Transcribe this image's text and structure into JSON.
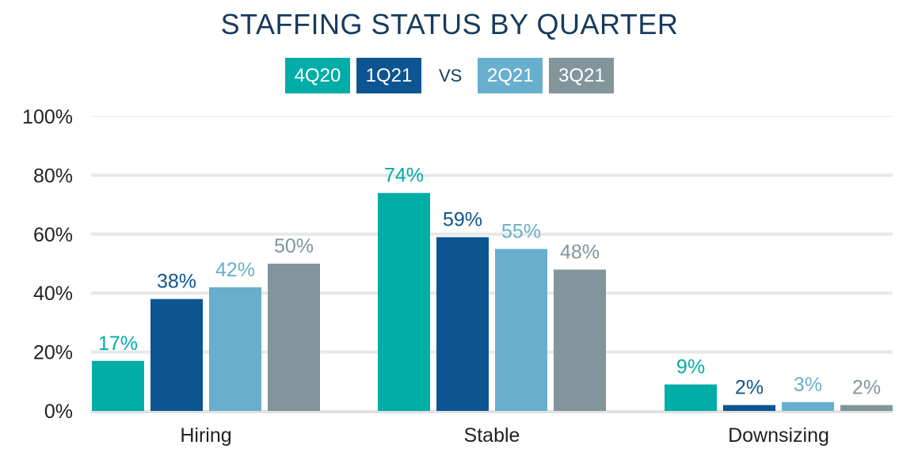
{
  "chart_data": {
    "type": "bar",
    "title": "STAFFING STATUS BY QUARTER",
    "legend_vs": "VS",
    "categories": [
      "Hiring",
      "Stable",
      "Downsizing"
    ],
    "series": [
      {
        "name": "4Q20",
        "color": "#00ada7",
        "values": [
          17,
          74,
          9
        ]
      },
      {
        "name": "1Q21",
        "color": "#0d5591",
        "values": [
          38,
          59,
          2
        ]
      },
      {
        "name": "2Q21",
        "color": "#67afcc",
        "values": [
          42,
          55,
          3
        ]
      },
      {
        "name": "3Q21",
        "color": "#82959c",
        "values": [
          50,
          48,
          2
        ]
      }
    ],
    "ylim": [
      0,
      100
    ],
    "yticks": [
      0,
      20,
      40,
      60,
      80,
      100
    ],
    "ytick_labels": [
      "0%",
      "20%",
      "40%",
      "60%",
      "80%",
      "100%"
    ],
    "value_suffix": "%",
    "grid": true,
    "legend_position": "top-center"
  }
}
